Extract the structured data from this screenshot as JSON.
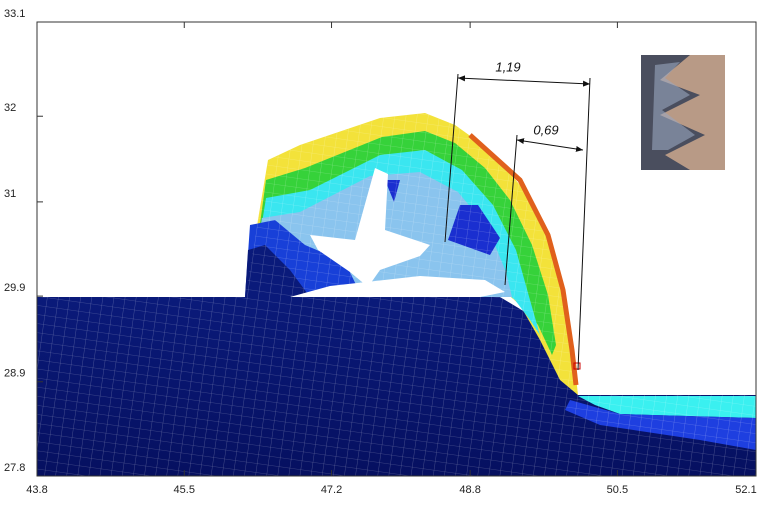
{
  "chart_data": {
    "type": "fem-contour",
    "xlim": [
      43.8,
      52.1
    ],
    "xticks": [
      43.8,
      45.5,
      47.2,
      48.8,
      50.5,
      52.1
    ],
    "ylim": [
      27.8,
      33.1
    ],
    "yticks": [
      27.8,
      28.9,
      29.9,
      31.0,
      32.0,
      33.1
    ],
    "annotations": [
      "1,19",
      "0,69"
    ]
  }
}
